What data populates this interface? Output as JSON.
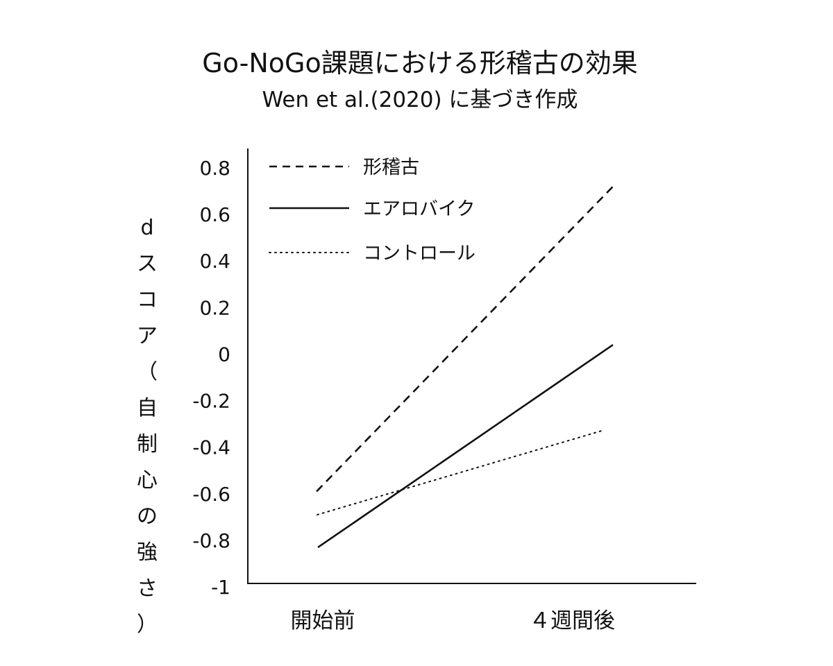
{
  "header": {
    "title": "Go-NoGo課題における形稽古の効果",
    "subtitle": "Wen et al.(2020) に基づき作成"
  },
  "chart_data": {
    "type": "line",
    "title": "Go-NoGo課題における形稽古の効果",
    "subtitle": "Wen et al.(2020) に基づき作成",
    "xlabel": "",
    "ylabel": "dスコア（自制心の強さ）",
    "categories": [
      "開始前",
      "４週間後"
    ],
    "ylim": [
      -1,
      0.8
    ],
    "yticks": [
      0.8,
      0.6,
      0.4,
      0.2,
      0,
      -0.2,
      -0.4,
      -0.6,
      -0.8,
      -1
    ],
    "ytick_labels": [
      "0.8",
      "0.6",
      "0.4",
      "0.2",
      "0",
      "-0.2",
      "-0.4",
      "-0.6",
      "-0.8",
      "-1"
    ],
    "grid": false,
    "legend_position": "top-left",
    "series": [
      {
        "name": "形稽古",
        "style": "dashed",
        "color": "#111111",
        "values": [
          -0.59,
          0.72
        ]
      },
      {
        "name": "エアロバイク",
        "style": "solid",
        "color": "#111111",
        "values": [
          -0.83,
          0.04
        ]
      },
      {
        "name": "コントロール",
        "style": "dotted",
        "color": "#111111",
        "values": [
          -0.69,
          -0.33
        ]
      }
    ]
  }
}
